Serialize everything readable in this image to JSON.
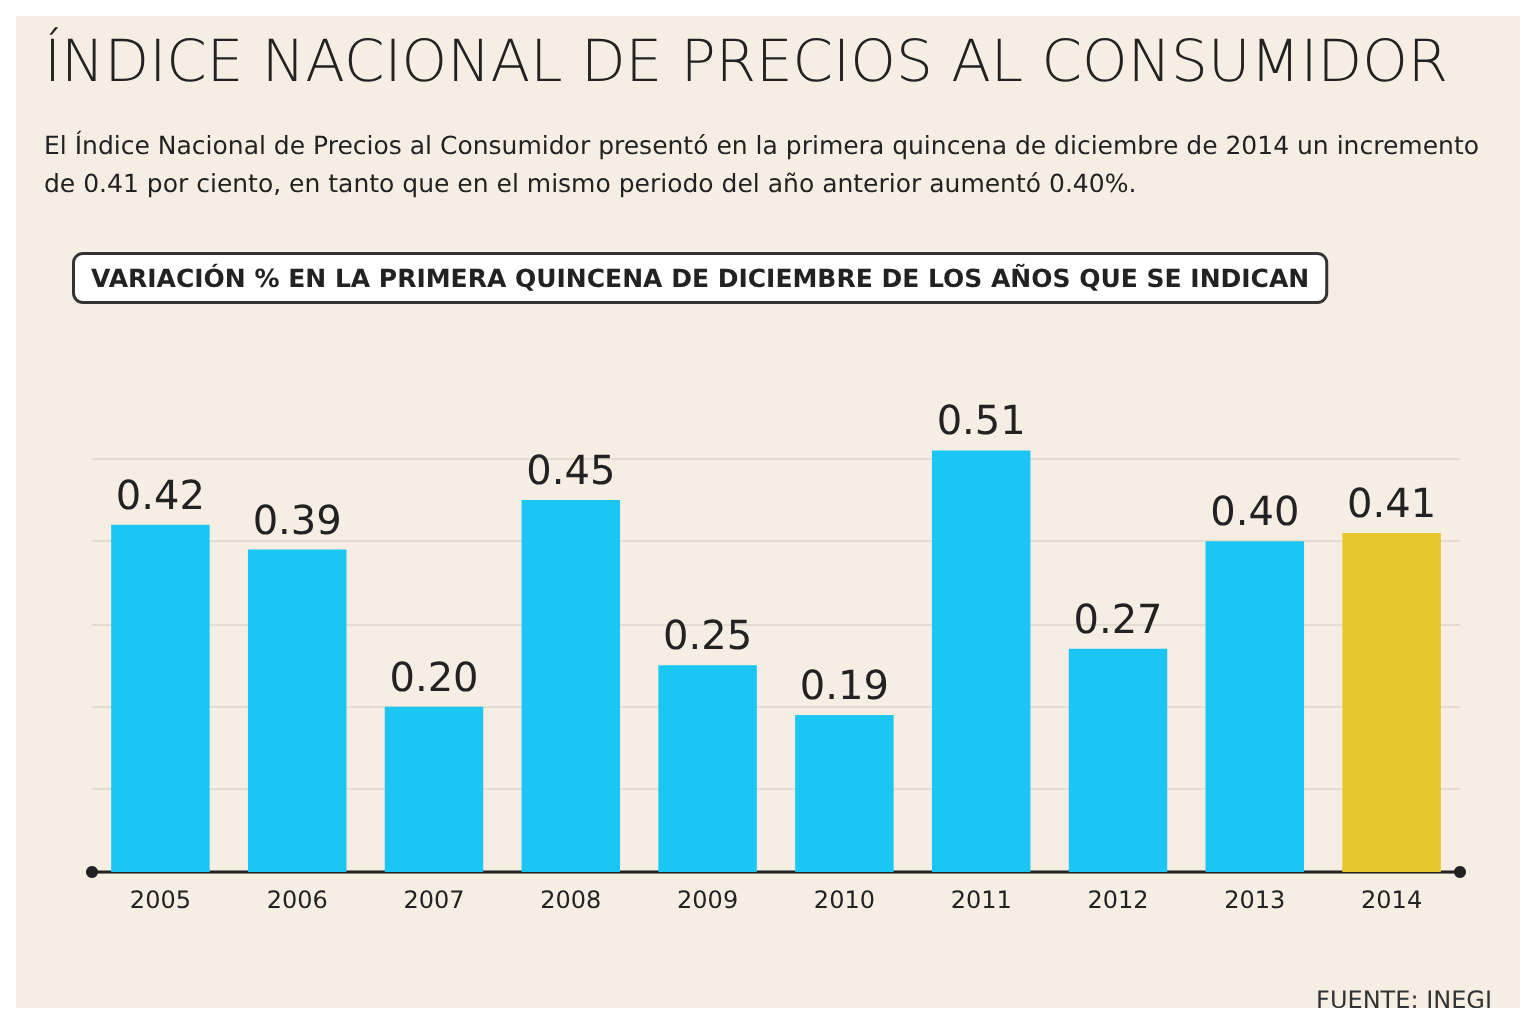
{
  "chart_data": {
    "type": "bar",
    "title": "ÍNDICE NACIONAL DE PRECIOS AL CONSUMIDOR",
    "subtitle": "El Índice Nacional de Precios al Consumidor presentó en la primera quincena de diciembre de 2014 un incremento de 0.41 por ciento, en tanto que en el mismo periodo del año anterior aumentó 0.40%.",
    "annotations": [
      "VARIACIÓN % EN LA PRIMERA QUINCENA DE DICIEMBRE DE LOS AÑOS QUE SE INDICAN",
      "FUENTE: INEGI"
    ],
    "categories": [
      "2005",
      "2006",
      "2007",
      "2008",
      "2009",
      "2010",
      "2011",
      "2012",
      "2013",
      "2014"
    ],
    "values": [
      0.42,
      0.39,
      0.2,
      0.45,
      0.25,
      0.19,
      0.51,
      0.27,
      0.4,
      0.41
    ],
    "colors": [
      "#1cc6f4",
      "#1cc6f4",
      "#1cc6f4",
      "#1cc6f4",
      "#1cc6f4",
      "#1cc6f4",
      "#1cc6f4",
      "#1cc6f4",
      "#1cc6f4",
      "#e6c72c"
    ],
    "value_labels": [
      "0.42",
      "0.39",
      "0.20",
      "0.45",
      "0.25",
      "0.19",
      "0.51",
      "0.27",
      "0.40",
      "0.41"
    ],
    "yticks": [
      {
        "value": 0,
        "label": null
      },
      {
        "value": 0.1,
        "label": null
      },
      {
        "value": 0.2,
        "label": null
      },
      {
        "value": 0.3,
        "label": null
      },
      {
        "value": 0.4,
        "label": null
      },
      {
        "value": 0.5,
        "label": null
      }
    ],
    "tick_labels": "x",
    "grid": "y"
  }
}
